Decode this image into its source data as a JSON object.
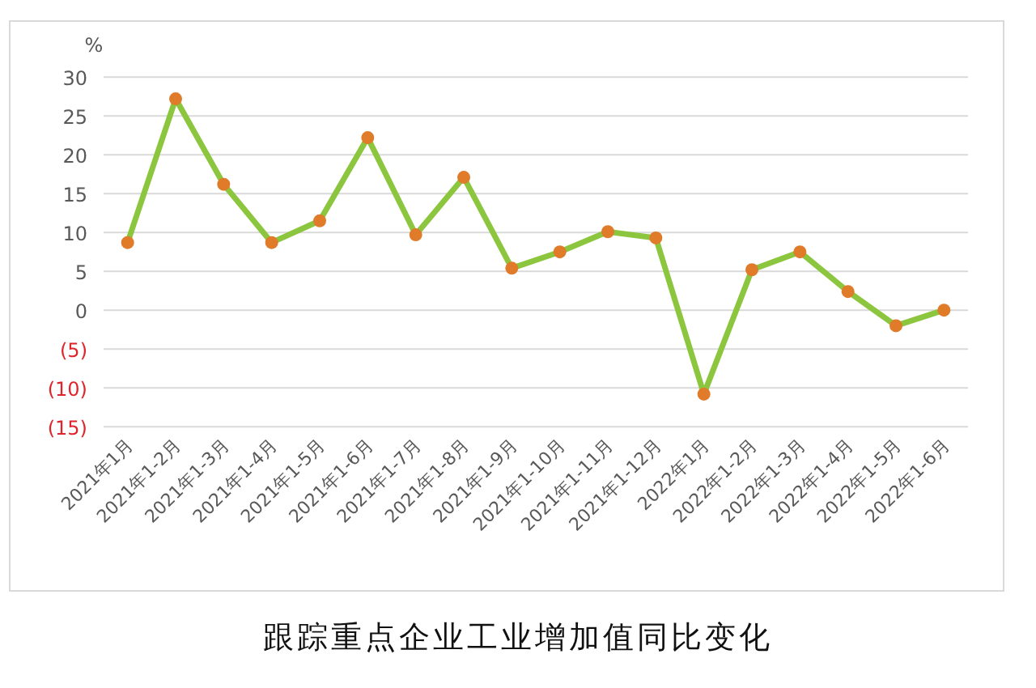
{
  "chart_data": {
    "type": "line",
    "title": "跟踪重点企业工业增加值同比变化",
    "ylabel": "%",
    "categories": [
      "2021年1月",
      "2021年1-2月",
      "2021年1-3月",
      "2021年1-4月",
      "2021年1-5月",
      "2021年1-6月",
      "2021年1-7月",
      "2021年1-8月",
      "2021年1-9月",
      "2021年1-10月",
      "2021年1-11月",
      "2021年1-12月",
      "2022年1月",
      "2022年1-2月",
      "2022年1-3月",
      "2022年1-4月",
      "2022年1-5月",
      "2022年1-6月"
    ],
    "series": [
      {
        "color": "#8cc63f",
        "colors": [
          "#e07b2a",
          "#e07b2a",
          "#e07b2a",
          "#e07b2a",
          "#e07b2a",
          "#e07b2a",
          "#e07b2a",
          "#e07b2a",
          "#e07b2a",
          "#e07b2a",
          "#e07b2a",
          "#e07b2a",
          "#e07b2a",
          "#e07b2a",
          "#e07b2a",
          "#e07b2a",
          "#e07b2a",
          "#e07b2a"
        ],
        "values": [
          8.7,
          27.2,
          16.2,
          8.7,
          11.5,
          22.2,
          9.7,
          17.1,
          5.4,
          7.5,
          10.1,
          9.3,
          -10.8,
          5.2,
          7.5,
          2.4,
          -2.0,
          0.0
        ]
      }
    ],
    "ylim": [
      -15,
      30
    ],
    "yticks": [
      {
        "value": -15,
        "label": "(15)"
      },
      {
        "value": -10,
        "label": "(10)"
      },
      {
        "value": -5,
        "label": "(5)"
      },
      0,
      5,
      10,
      15,
      20,
      25,
      30
    ],
    "grid": "y",
    "marker": "circle",
    "line_style": "solid"
  }
}
